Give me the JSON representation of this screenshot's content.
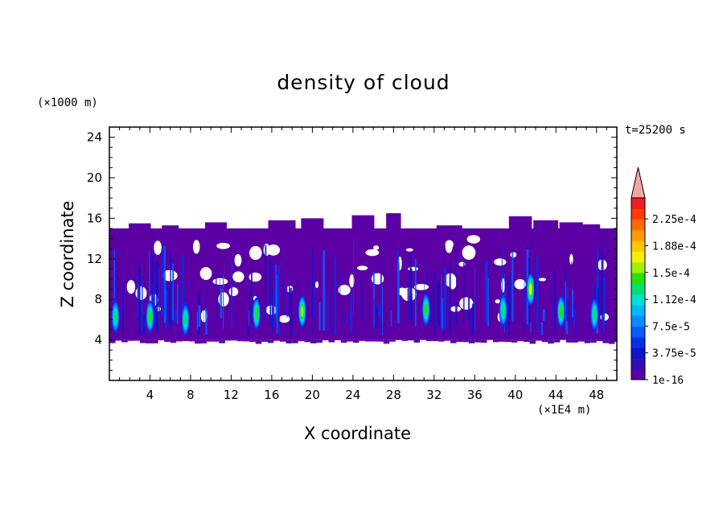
{
  "chart_data": {
    "type": "heatmap",
    "title": "density of cloud",
    "xlabel": "X coordinate",
    "ylabel": "Z coordinate",
    "x_unit": "(×1E4 m)",
    "z_unit": "(×1000 m)",
    "time_label": "t=25200 s",
    "xlim": [
      0,
      50
    ],
    "ylim": [
      0,
      25
    ],
    "x_ticks": [
      4,
      8,
      12,
      16,
      20,
      24,
      28,
      32,
      36,
      40,
      44,
      48
    ],
    "y_ticks": [
      4,
      8,
      12,
      16,
      20,
      24
    ],
    "cloud_base_z": 4.0,
    "cloud_top_z": 15.0,
    "colorbar": {
      "labels": [
        "1e-16",
        "3.75e-5",
        "7.5e-5",
        "1.12e-4",
        "1.5e-4",
        "1.88e-4",
        "2.25e-4"
      ],
      "colors": [
        "#5b00a5",
        "#2f0fb5",
        "#1212c8",
        "#0a2ee6",
        "#0a5cff",
        "#0a8cff",
        "#00b9ff",
        "#00e0d0",
        "#00e070",
        "#28e000",
        "#a0f000",
        "#f0f000",
        "#ffc800",
        "#ff9a00",
        "#ff6a00",
        "#ff3c00",
        "#f01e1e"
      ],
      "overflow_color": "#f4a6a6"
    },
    "hot_spots": [
      {
        "x": 0.6,
        "z": 6.3,
        "level": 8
      },
      {
        "x": 4.0,
        "z": 6.3,
        "level": 9
      },
      {
        "x": 7.5,
        "z": 6.0,
        "level": 8
      },
      {
        "x": 14.5,
        "z": 6.6,
        "level": 9
      },
      {
        "x": 19.0,
        "z": 6.8,
        "level": 10
      },
      {
        "x": 31.2,
        "z": 7.0,
        "level": 9
      },
      {
        "x": 38.8,
        "z": 6.9,
        "level": 8
      },
      {
        "x": 41.5,
        "z": 9.0,
        "level": 11
      },
      {
        "x": 44.5,
        "z": 6.8,
        "level": 9
      },
      {
        "x": 47.8,
        "z": 6.5,
        "level": 8
      }
    ]
  }
}
